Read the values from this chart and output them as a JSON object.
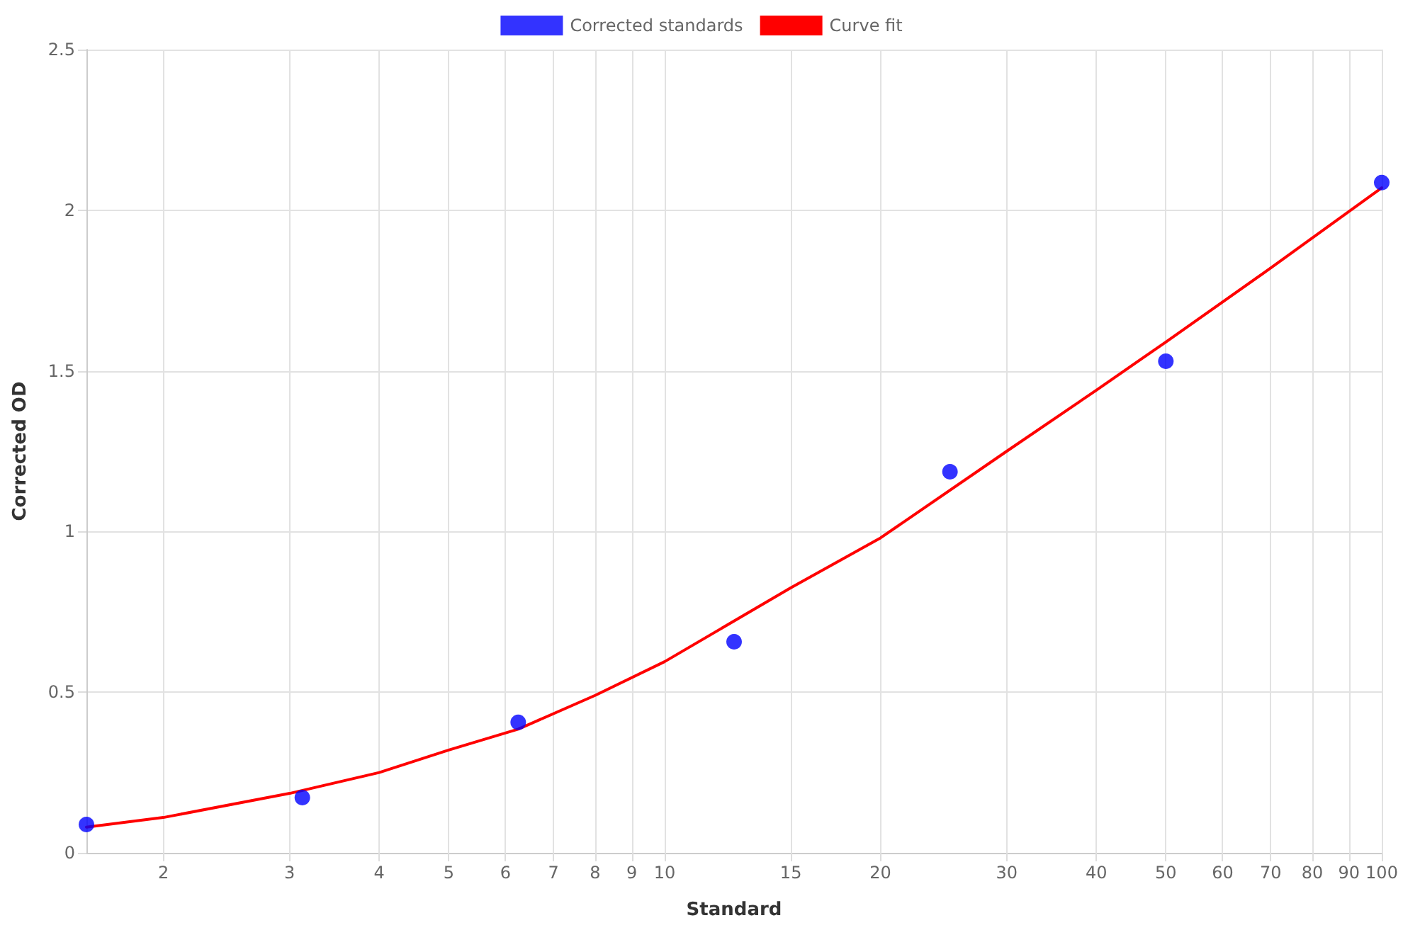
{
  "chart_data": {
    "type": "scatter",
    "xlabel": "Standard",
    "ylabel": "Corrected OD",
    "log": "x",
    "grid": true,
    "legend": "top",
    "xlim": [
      1.5625,
      100
    ],
    "xticks": [
      2,
      3,
      4,
      5,
      6,
      7,
      8,
      9,
      10,
      15,
      20,
      30,
      40,
      50,
      60,
      70,
      80,
      90,
      100
    ],
    "ylim": [
      0,
      2.5
    ],
    "yticks": [
      0,
      0.5,
      1,
      1.5,
      2,
      2.5
    ],
    "series": [
      {
        "name": "Corrected standards",
        "type": "scatter",
        "color": "#0000ff",
        "marker": "circle",
        "x": [
          1.5625,
          3.125,
          6.25,
          12.5,
          25,
          50,
          100
        ],
        "values": [
          0.088,
          0.172,
          0.406,
          0.657,
          1.186,
          1.53,
          2.086
        ]
      },
      {
        "name": "Curve fit",
        "type": "line",
        "color": "#ff0000",
        "marker": "none",
        "line_style": "solid",
        "x": [
          1.5625,
          2,
          3,
          4,
          5,
          6.25,
          8,
          10,
          15,
          20,
          30,
          40,
          50,
          70,
          100
        ],
        "values": [
          0.08,
          0.11,
          0.185,
          0.25,
          0.32,
          0.385,
          0.49,
          0.595,
          0.825,
          0.98,
          1.25,
          1.44,
          1.59,
          1.82,
          2.07
        ]
      }
    ]
  }
}
